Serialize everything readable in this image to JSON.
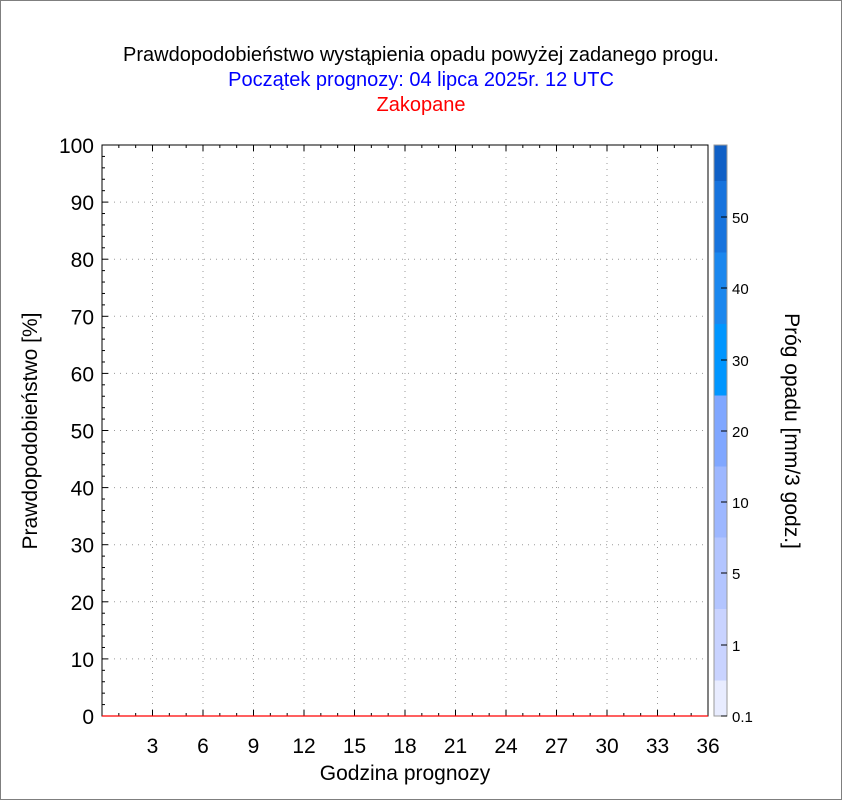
{
  "titles": {
    "line1": "Prawdopodobieństwo wystąpienia opadu powyżej zadanego progu.",
    "line2": "Początek prognozy: 04 lipca 2025r. 12 UTC",
    "line3": "Zakopane"
  },
  "colors": {
    "line1": "#000000",
    "line2": "#0000ff",
    "line3": "#ff0000",
    "baseline": "#ff0000"
  },
  "chart_data": {
    "type": "line",
    "title": "Prawdopodobieństwo wystąpienia opadu powyżej zadanego progu.",
    "subtitle": "Początek prognozy: 04 lipca 2025r. 12 UTC",
    "location": "Zakopane",
    "xlabel": "Godzina prognozy",
    "ylabel": "Prawdopodobieństwo [%]",
    "xlim": [
      0,
      36
    ],
    "ylim": [
      0,
      100
    ],
    "x_ticks": [
      3,
      6,
      9,
      12,
      15,
      18,
      21,
      24,
      27,
      30,
      33,
      36
    ],
    "y_ticks": [
      0,
      10,
      20,
      30,
      40,
      50,
      60,
      70,
      80,
      90,
      100
    ],
    "grid": true,
    "series": [
      {
        "x": [
          0,
          36
        ],
        "values": [
          0,
          0
        ],
        "color": "#ff0000"
      }
    ],
    "colorbar": {
      "label": "Próg opadu [mm/3 godz.]",
      "tick_labels": [
        "0.1",
        "1",
        "5",
        "10",
        "20",
        "30",
        "40",
        "50"
      ],
      "colors": [
        "#e8ecff",
        "#c9d3ff",
        "#b3c5ff",
        "#9db7ff",
        "#80a7ff",
        "#0096ff",
        "#1b87ee",
        "#1773dd",
        "#1060c6",
        "#0a44a8"
      ]
    }
  }
}
